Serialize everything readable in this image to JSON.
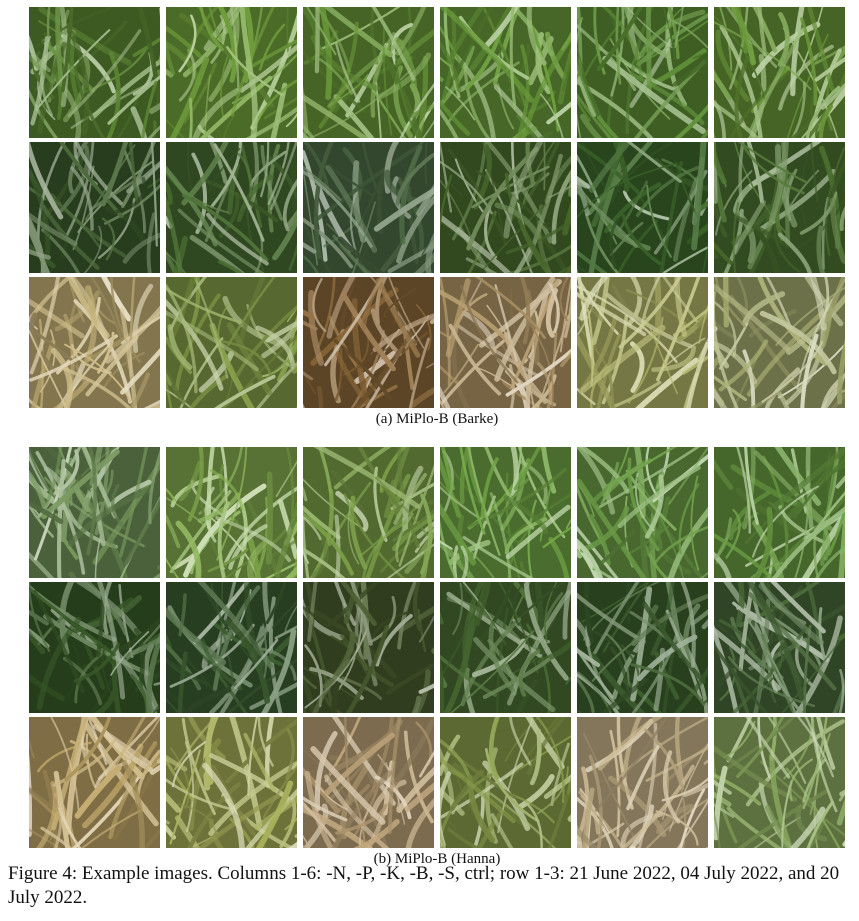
{
  "panels": [
    {
      "caption": "(a)  MiPlo-B (Barke)",
      "rows": [
        [
          "#5f8a36",
          "#74a43e",
          "#6b9a3a",
          "#6c9e3c",
          "#5f9038",
          "#6c9a3a"
        ],
        [
          "#3e5e2c",
          "#4a6f32",
          "#4f6b46",
          "#4d6e30",
          "#3f6a2c",
          "#4e7432"
        ],
        [
          "#c9b57a",
          "#86a04a",
          "#8e6a3a",
          "#b59a6a",
          "#b4b86a",
          "#a8ae72"
        ]
      ]
    },
    {
      "caption": "(b)  MiPlo-B (Hanna)",
      "rows": [
        [
          "#74955a",
          "#86b050",
          "#7ea24a",
          "#72a646",
          "#6ea048",
          "#6c9e44"
        ],
        [
          "#3b5e2a",
          "#3e5f32",
          "#4a5e30",
          "#4b6e34",
          "#3f6230",
          "#4a6a3a"
        ],
        [
          "#c2a86a",
          "#a8b05a",
          "#bfa57a",
          "#8ea24e",
          "#c9b68c",
          "#8fae62"
        ]
      ]
    }
  ],
  "figure_caption": "Figure 4: Example images. Columns 1-6: -N, -P, -K, -B, -S, ctrl; row 1-3: 21 June 2022, 04 July 2022, and 20 July 2022."
}
